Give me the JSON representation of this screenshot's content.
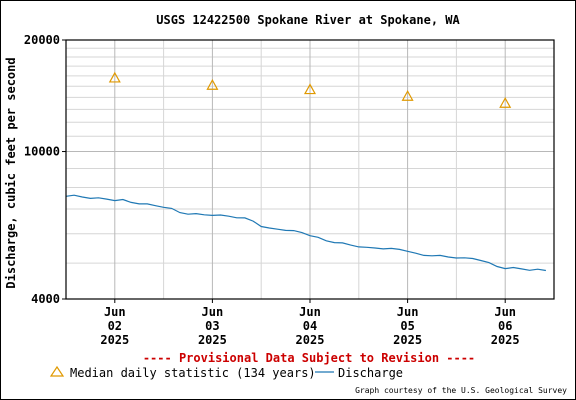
{
  "title": "USGS 12422500 Spokane River at Spokane, WA",
  "ylabel": "Discharge, cubic feet per second",
  "provisional_note": "---- Provisional Data Subject to Revision ----",
  "legend": {
    "median_label": "Median daily statistic (134 years)",
    "discharge_label": "Discharge"
  },
  "courtesy": "Graph courtesy of the U.S. Geological Survey",
  "colors": {
    "median": "#e09900",
    "discharge": "#1f78b4",
    "provisional": "#cc0000"
  },
  "chart_data": {
    "type": "line",
    "scale_y": "log",
    "ylim": [
      4000,
      20000
    ],
    "xlim": [
      "2025-06-01T12:00",
      "2025-06-06T12:00"
    ],
    "grid": true,
    "legend_position": "bottom",
    "y_ticks": [
      4000,
      10000,
      20000
    ],
    "y_tick_labels": [
      "4000",
      "10000",
      "20000"
    ],
    "x_ticks": [
      {
        "date": "2025-06-02",
        "label_lines": [
          "Jun",
          "02",
          "2025"
        ]
      },
      {
        "date": "2025-06-03",
        "label_lines": [
          "Jun",
          "03",
          "2025"
        ]
      },
      {
        "date": "2025-06-04",
        "label_lines": [
          "Jun",
          "04",
          "2025"
        ]
      },
      {
        "date": "2025-06-05",
        "label_lines": [
          "Jun",
          "05",
          "2025"
        ]
      },
      {
        "date": "2025-06-06",
        "label_lines": [
          "Jun",
          "06",
          "2025"
        ]
      }
    ],
    "series": [
      {
        "name": "Median daily statistic (134 years)",
        "type": "scatter",
        "marker": "triangle",
        "x": [
          "2025-06-02",
          "2025-06-03",
          "2025-06-04",
          "2025-06-05",
          "2025-06-06"
        ],
        "y": [
          15800,
          15100,
          14700,
          14100,
          13500
        ]
      },
      {
        "name": "Discharge",
        "type": "line",
        "x": [
          "2025-06-01T12:00",
          "2025-06-01T14:00",
          "2025-06-01T16:00",
          "2025-06-01T18:00",
          "2025-06-01T20:00",
          "2025-06-01T22:00",
          "2025-06-02T00:00",
          "2025-06-02T02:00",
          "2025-06-02T04:00",
          "2025-06-02T06:00",
          "2025-06-02T08:00",
          "2025-06-02T10:00",
          "2025-06-02T12:00",
          "2025-06-02T14:00",
          "2025-06-02T16:00",
          "2025-06-02T18:00",
          "2025-06-02T20:00",
          "2025-06-02T22:00",
          "2025-06-03T00:00",
          "2025-06-03T02:00",
          "2025-06-03T04:00",
          "2025-06-03T06:00",
          "2025-06-03T08:00",
          "2025-06-03T10:00",
          "2025-06-03T12:00",
          "2025-06-03T14:00",
          "2025-06-03T16:00",
          "2025-06-03T18:00",
          "2025-06-03T20:00",
          "2025-06-03T22:00",
          "2025-06-04T00:00",
          "2025-06-04T02:00",
          "2025-06-04T04:00",
          "2025-06-04T06:00",
          "2025-06-04T08:00",
          "2025-06-04T10:00",
          "2025-06-04T12:00",
          "2025-06-04T14:00",
          "2025-06-04T16:00",
          "2025-06-04T18:00",
          "2025-06-04T20:00",
          "2025-06-04T22:00",
          "2025-06-05T00:00",
          "2025-06-05T02:00",
          "2025-06-05T04:00",
          "2025-06-05T06:00",
          "2025-06-05T08:00",
          "2025-06-05T10:00",
          "2025-06-05T12:00",
          "2025-06-05T14:00",
          "2025-06-05T16:00",
          "2025-06-05T18:00",
          "2025-06-05T20:00",
          "2025-06-05T22:00",
          "2025-06-06T00:00",
          "2025-06-06T02:00",
          "2025-06-06T04:00",
          "2025-06-06T06:00",
          "2025-06-06T08:00",
          "2025-06-06T10:00"
        ],
        "y": [
          7600,
          7600,
          7550,
          7500,
          7480,
          7450,
          7400,
          7400,
          7300,
          7250,
          7200,
          7150,
          7100,
          7000,
          6850,
          6800,
          6780,
          6760,
          6750,
          6720,
          6700,
          6650,
          6600,
          6500,
          6300,
          6200,
          6180,
          6150,
          6100,
          6050,
          5950,
          5850,
          5750,
          5700,
          5650,
          5600,
          5550,
          5500,
          5500,
          5480,
          5460,
          5450,
          5400,
          5300,
          5250,
          5250,
          5230,
          5200,
          5180,
          5150,
          5150,
          5100,
          5000,
          4900,
          4850,
          4850,
          4830,
          4800,
          4800,
          4780
        ]
      }
    ]
  }
}
